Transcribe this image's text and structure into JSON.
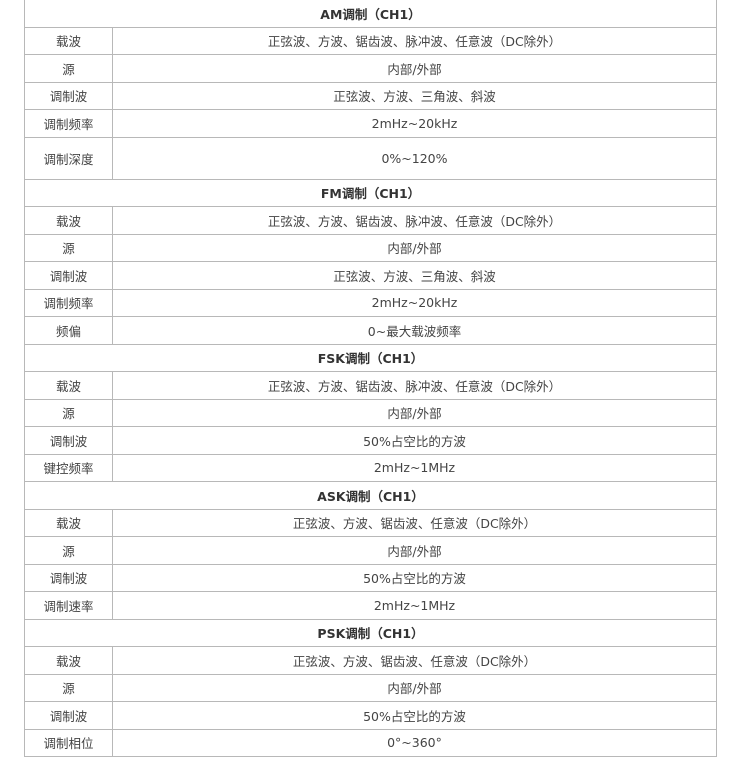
{
  "sections": [
    {
      "title": "AM调制（CH1）",
      "rows": [
        {
          "label": "载波",
          "value": "正弦波、方波、锯齿波、脉冲波、任意波（DC除外）"
        },
        {
          "label": "源",
          "value": "内部/外部"
        },
        {
          "label": "调制波",
          "value": "正弦波、方波、三角波、斜波"
        },
        {
          "label": "调制频率",
          "value": "2mHz~20kHz"
        },
        {
          "label": "调制深度",
          "value": "0%~120%"
        }
      ]
    },
    {
      "title": "FM调制（CH1）",
      "rows": [
        {
          "label": "载波",
          "value": "正弦波、方波、锯齿波、脉冲波、任意波（DC除外）"
        },
        {
          "label": "源",
          "value": "内部/外部"
        },
        {
          "label": "调制波",
          "value": "正弦波、方波、三角波、斜波"
        },
        {
          "label": "调制频率",
          "value": "2mHz~20kHz"
        },
        {
          "label": "频偏",
          "value": "0~最大载波频率"
        }
      ]
    },
    {
      "title": "FSK调制（CH1）",
      "rows": [
        {
          "label": "载波",
          "value": "正弦波、方波、锯齿波、脉冲波、任意波（DC除外）"
        },
        {
          "label": "源",
          "value": "内部/外部"
        },
        {
          "label": "调制波",
          "value": "50%占空比的方波"
        },
        {
          "label": "键控频率",
          "value": "2mHz~1MHz"
        }
      ]
    },
    {
      "title": "ASK调制（CH1）",
      "rows": [
        {
          "label": "载波",
          "value": "正弦波、方波、锯齿波、任意波（DC除外）"
        },
        {
          "label": "源",
          "value": "内部/外部"
        },
        {
          "label": "调制波",
          "value": "50%占空比的方波"
        },
        {
          "label": "调制速率",
          "value": "2mHz~1MHz"
        }
      ]
    },
    {
      "title": "PSK调制（CH1）",
      "rows": [
        {
          "label": "载波",
          "value": "正弦波、方波、锯齿波、任意波（DC除外）"
        },
        {
          "label": "源",
          "value": "内部/外部"
        },
        {
          "label": "调制波",
          "value": "50%占空比的方波"
        },
        {
          "label": "调制相位",
          "value": "0°~360°"
        }
      ]
    }
  ]
}
